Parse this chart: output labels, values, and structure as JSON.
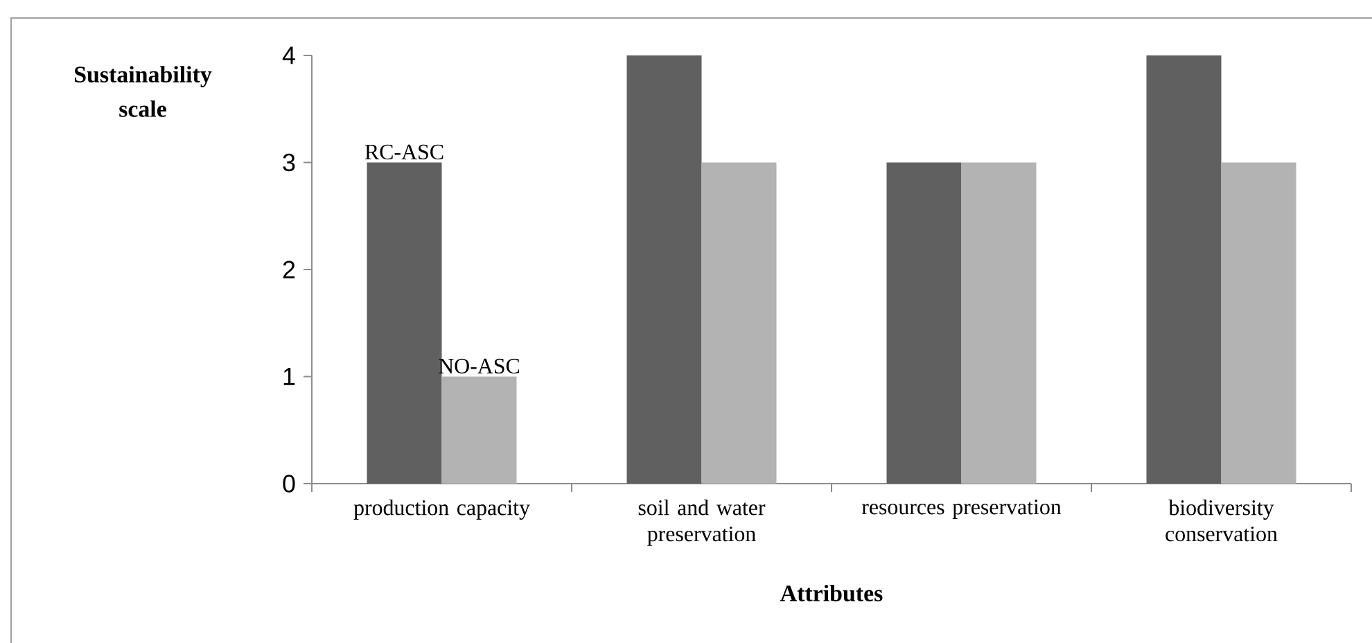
{
  "chart_data": {
    "type": "bar",
    "ylabel": "Sustainability scale",
    "xlabel": "Attributes",
    "categories": [
      "production capacity",
      "soil and water preservation",
      "resources preservation",
      "biodiversity conservation"
    ],
    "series": [
      {
        "name": "RC-ASC",
        "color": "#606060",
        "values": [
          3,
          4,
          3,
          4
        ]
      },
      {
        "name": "NO-ASC",
        "color": "#b3b3b3",
        "values": [
          1,
          3,
          3,
          3
        ]
      }
    ],
    "ylim": [
      0,
      4
    ],
    "yticks": [
      0,
      1,
      2,
      3,
      4
    ]
  }
}
